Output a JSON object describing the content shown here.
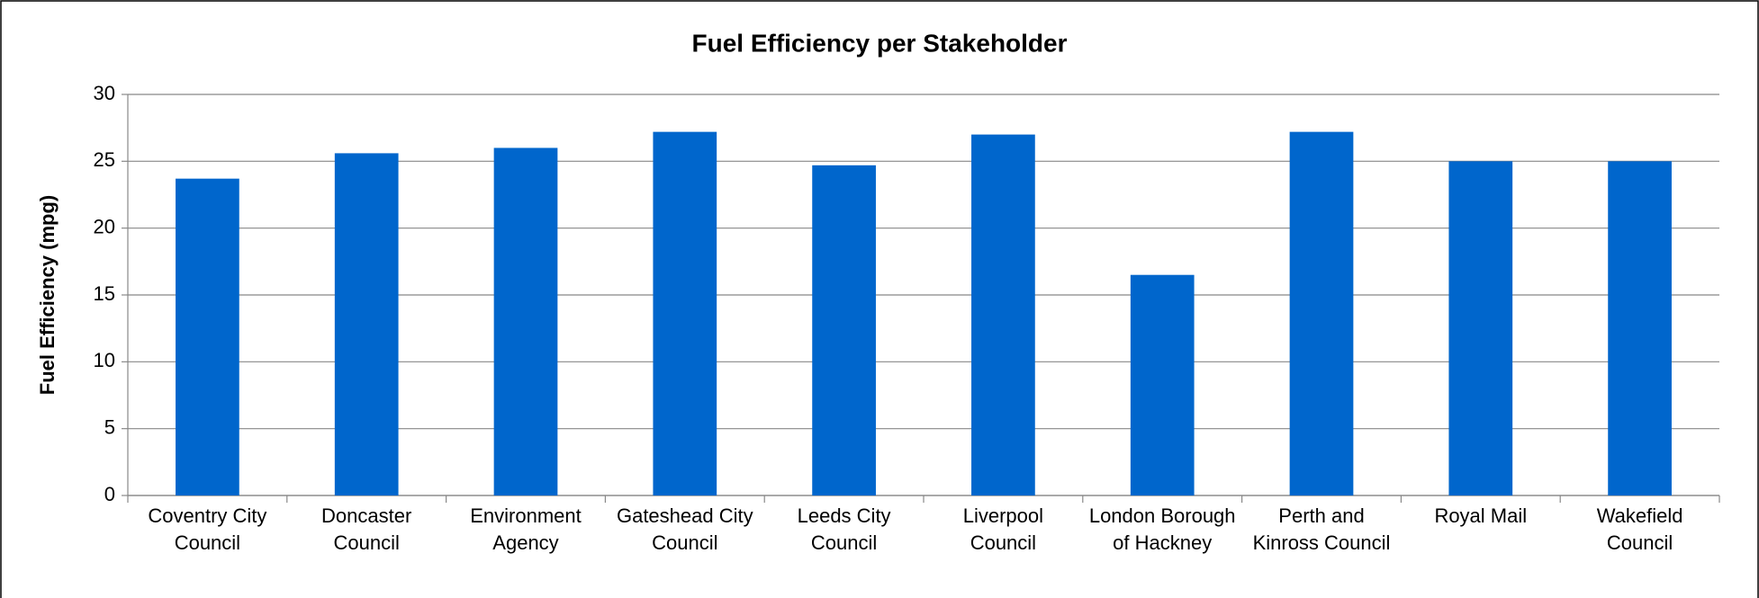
{
  "chart_data": {
    "type": "bar",
    "title": "Fuel Efficiency per Stakeholder",
    "y_label": "Fuel Efficiency (mpg)",
    "categories": [
      "Coventry City Council",
      "Doncaster Council",
      "Environment Agency",
      "Gateshead City Council",
      "Leeds City Council",
      "Liverpool Council",
      "London Borough of Hackney",
      "Perth and Kinross Council",
      "Royal Mail",
      "Wakefield Council"
    ],
    "values": [
      23.7,
      25.6,
      26.0,
      27.2,
      24.7,
      27.0,
      16.5,
      27.2,
      25.0,
      25.0
    ],
    "color": "#0066cc",
    "ylim": [
      0,
      30
    ],
    "yticks": [
      0,
      5,
      10,
      15,
      20,
      25,
      30
    ],
    "grid": true
  }
}
